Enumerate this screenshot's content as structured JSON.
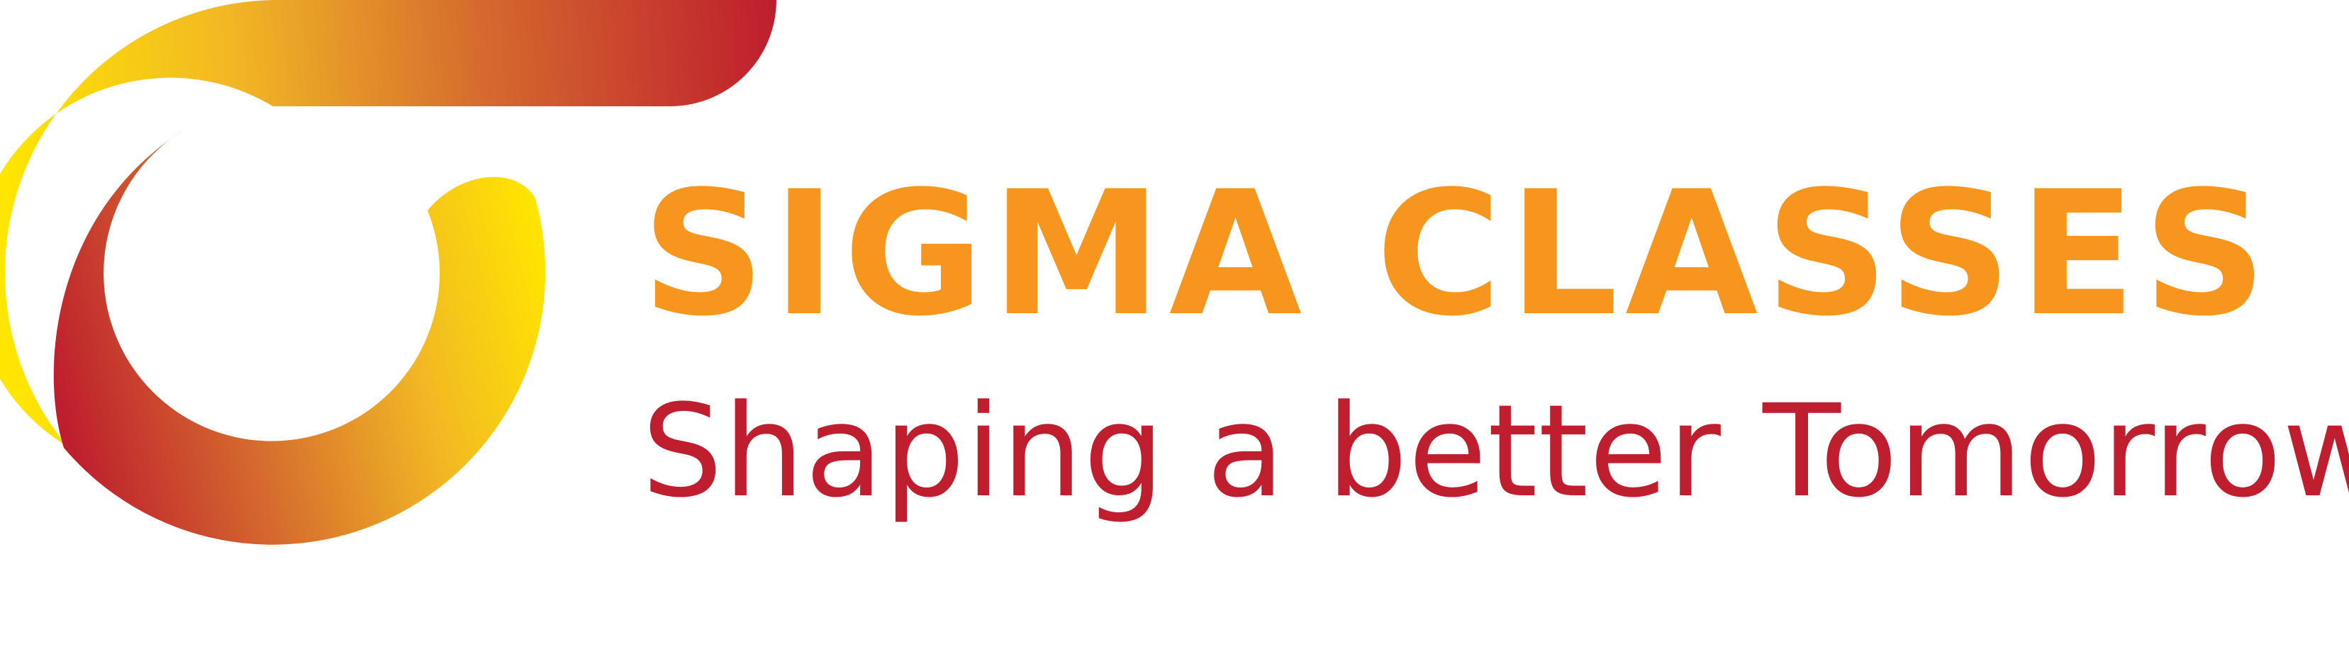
{
  "brand": {
    "name": "SIGMA CLASSES",
    "tagline": "Shaping a better Tomorrow"
  },
  "colors": {
    "brand_name": "#F7961D",
    "tagline": "#BE1E2D",
    "gradient_yellow": "#FFE600",
    "gradient_gold": "#F2B824",
    "gradient_orange": "#D56B2E",
    "gradient_red": "#BE1E2D"
  },
  "icons": {
    "logo": "sigma-swoosh-logo-icon"
  }
}
